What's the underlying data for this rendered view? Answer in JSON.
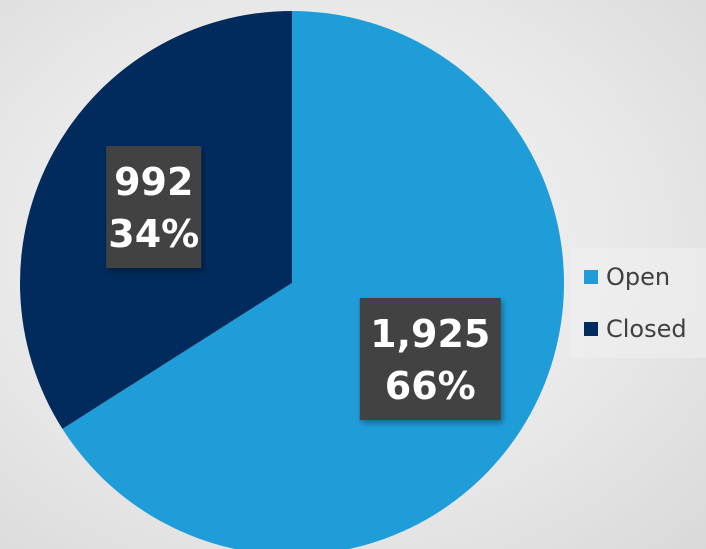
{
  "chart_data": {
    "type": "pie",
    "title": "",
    "slices": [
      {
        "name": "Open",
        "value": 1925,
        "value_label": "1,925",
        "percent_label": "66%",
        "color": "#1f9dd9"
      },
      {
        "name": "Closed",
        "value": 992,
        "value_label": "992",
        "percent_label": "34%",
        "color": "#002b5c"
      }
    ],
    "legend_position": "right",
    "label_box_color": "#404040"
  }
}
